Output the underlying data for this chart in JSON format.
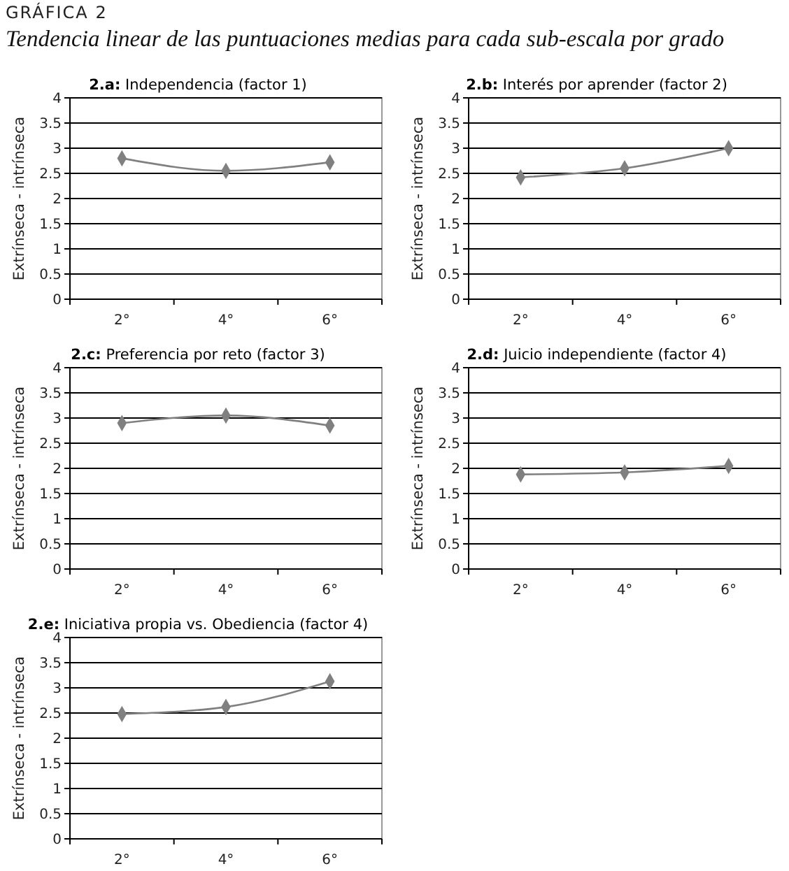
{
  "chart_data": [
    {
      "type": "line",
      "title": "2.a: Independencia (factor 1)",
      "ylabel": "Extrínseca - intrínseca",
      "categories": [
        "2°",
        "4°",
        "6°"
      ],
      "values": [
        2.8,
        2.55,
        2.72
      ],
      "color": "#808080",
      "marker": "diamond",
      "ylim": [
        0,
        4
      ],
      "yticks": [
        0,
        0.5,
        1,
        1.5,
        2,
        2.5,
        3,
        3.5,
        4
      ],
      "grid": "y",
      "annotations": [
        "GRÁFICA 2",
        "Tendencia linear de las puntuaciones medias para cada sub-escala por grado"
      ]
    },
    {
      "type": "line",
      "title": "2.b: Interés por aprender (factor 2)",
      "ylabel": "Extrínseca - intrínseca",
      "categories": [
        "2°",
        "4°",
        "6°"
      ],
      "values": [
        2.42,
        2.6,
        3.0
      ],
      "color": "#808080",
      "marker": "diamond",
      "ylim": [
        0,
        4
      ],
      "yticks": [
        0,
        0.5,
        1,
        1.5,
        2,
        2.5,
        3,
        3.5,
        4
      ],
      "grid": "y"
    },
    {
      "type": "line",
      "title": "2.c: Preferencia por reto (factor 3)",
      "ylabel": "Extrínseca - intrínseca",
      "categories": [
        "2°",
        "4°",
        "6°"
      ],
      "values": [
        2.9,
        3.05,
        2.85
      ],
      "color": "#808080",
      "marker": "diamond",
      "ylim": [
        0,
        4
      ],
      "yticks": [
        0,
        0.5,
        1,
        1.5,
        2,
        2.5,
        3,
        3.5,
        4
      ],
      "grid": "y"
    },
    {
      "type": "line",
      "title": "2.d: Juicio independiente (factor 4)",
      "ylabel": "Extrínseca - intrínseca",
      "categories": [
        "2°",
        "4°",
        "6°"
      ],
      "values": [
        1.88,
        1.92,
        2.05
      ],
      "color": "#808080",
      "marker": "diamond",
      "ylim": [
        0,
        4
      ],
      "yticks": [
        0,
        0.5,
        1,
        1.5,
        2,
        2.5,
        3,
        3.5,
        4
      ],
      "grid": "y"
    },
    {
      "type": "line",
      "title": "2.e: Iniciativa propia vs. Obediencia (factor 4)",
      "ylabel": "Extrínseca - intrínseca",
      "categories": [
        "2°",
        "4°",
        "6°"
      ],
      "values": [
        2.48,
        2.62,
        3.13
      ],
      "color": "#808080",
      "marker": "diamond",
      "ylim": [
        0,
        4
      ],
      "yticks": [
        0,
        0.5,
        1,
        1.5,
        2,
        2.5,
        3,
        3.5,
        4
      ],
      "grid": "y"
    }
  ]
}
